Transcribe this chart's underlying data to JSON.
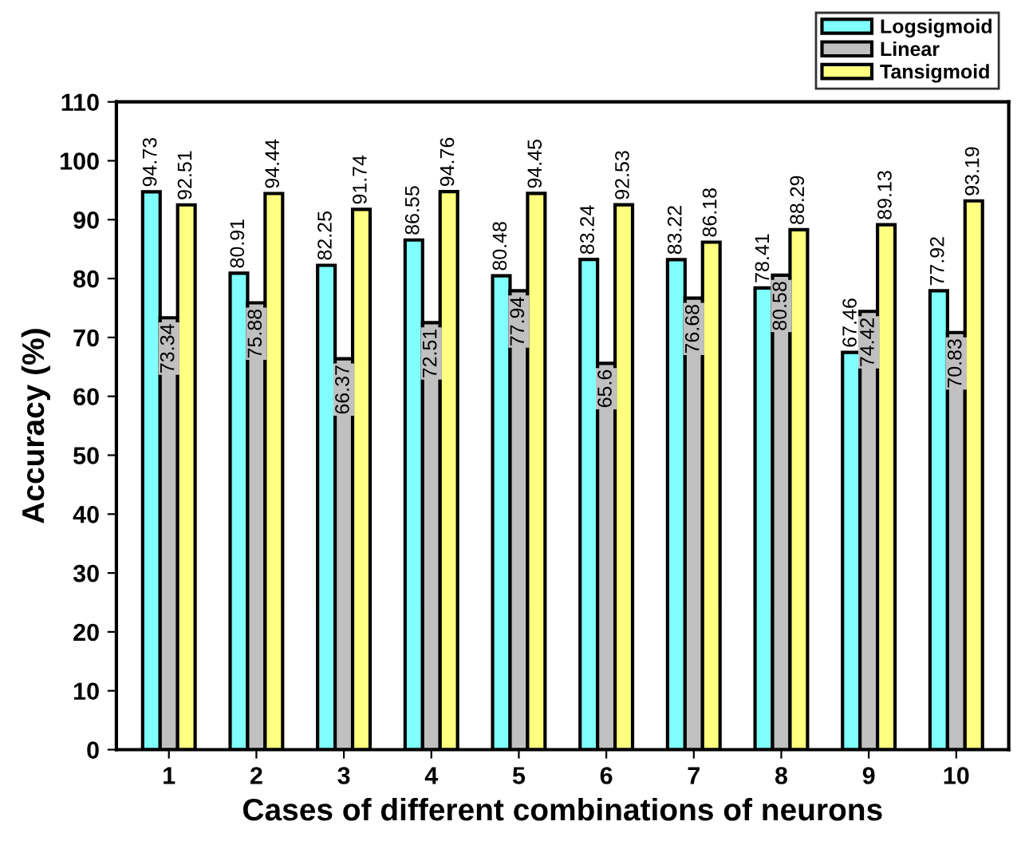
{
  "chart_data": {
    "type": "bar",
    "xlabel": "Cases of different combinations of neurons",
    "ylabel": "Accuracy (%)",
    "categories": [
      "1",
      "2",
      "3",
      "4",
      "5",
      "6",
      "7",
      "8",
      "9",
      "10"
    ],
    "series": [
      {
        "name": "Logsigmoid",
        "color": "#80ffff",
        "values": [
          94.73,
          80.91,
          82.25,
          86.55,
          80.48,
          83.24,
          83.22,
          78.41,
          67.46,
          77.92
        ]
      },
      {
        "name": "Linear",
        "color": "#c0c0c0",
        "values": [
          73.34,
          75.88,
          66.37,
          72.51,
          77.94,
          65.6,
          76.68,
          80.58,
          74.42,
          70.83
        ]
      },
      {
        "name": "Tansigmoid",
        "color": "#ffff80",
        "values": [
          92.51,
          94.44,
          91.74,
          94.76,
          94.45,
          92.53,
          86.18,
          88.29,
          89.13,
          93.19
        ]
      }
    ],
    "ylim": [
      0,
      110
    ],
    "yticks": [
      0,
      10,
      20,
      30,
      40,
      50,
      60,
      70,
      80,
      90,
      100,
      110
    ],
    "data_labels": true,
    "legend": "top right",
    "grid": false
  }
}
